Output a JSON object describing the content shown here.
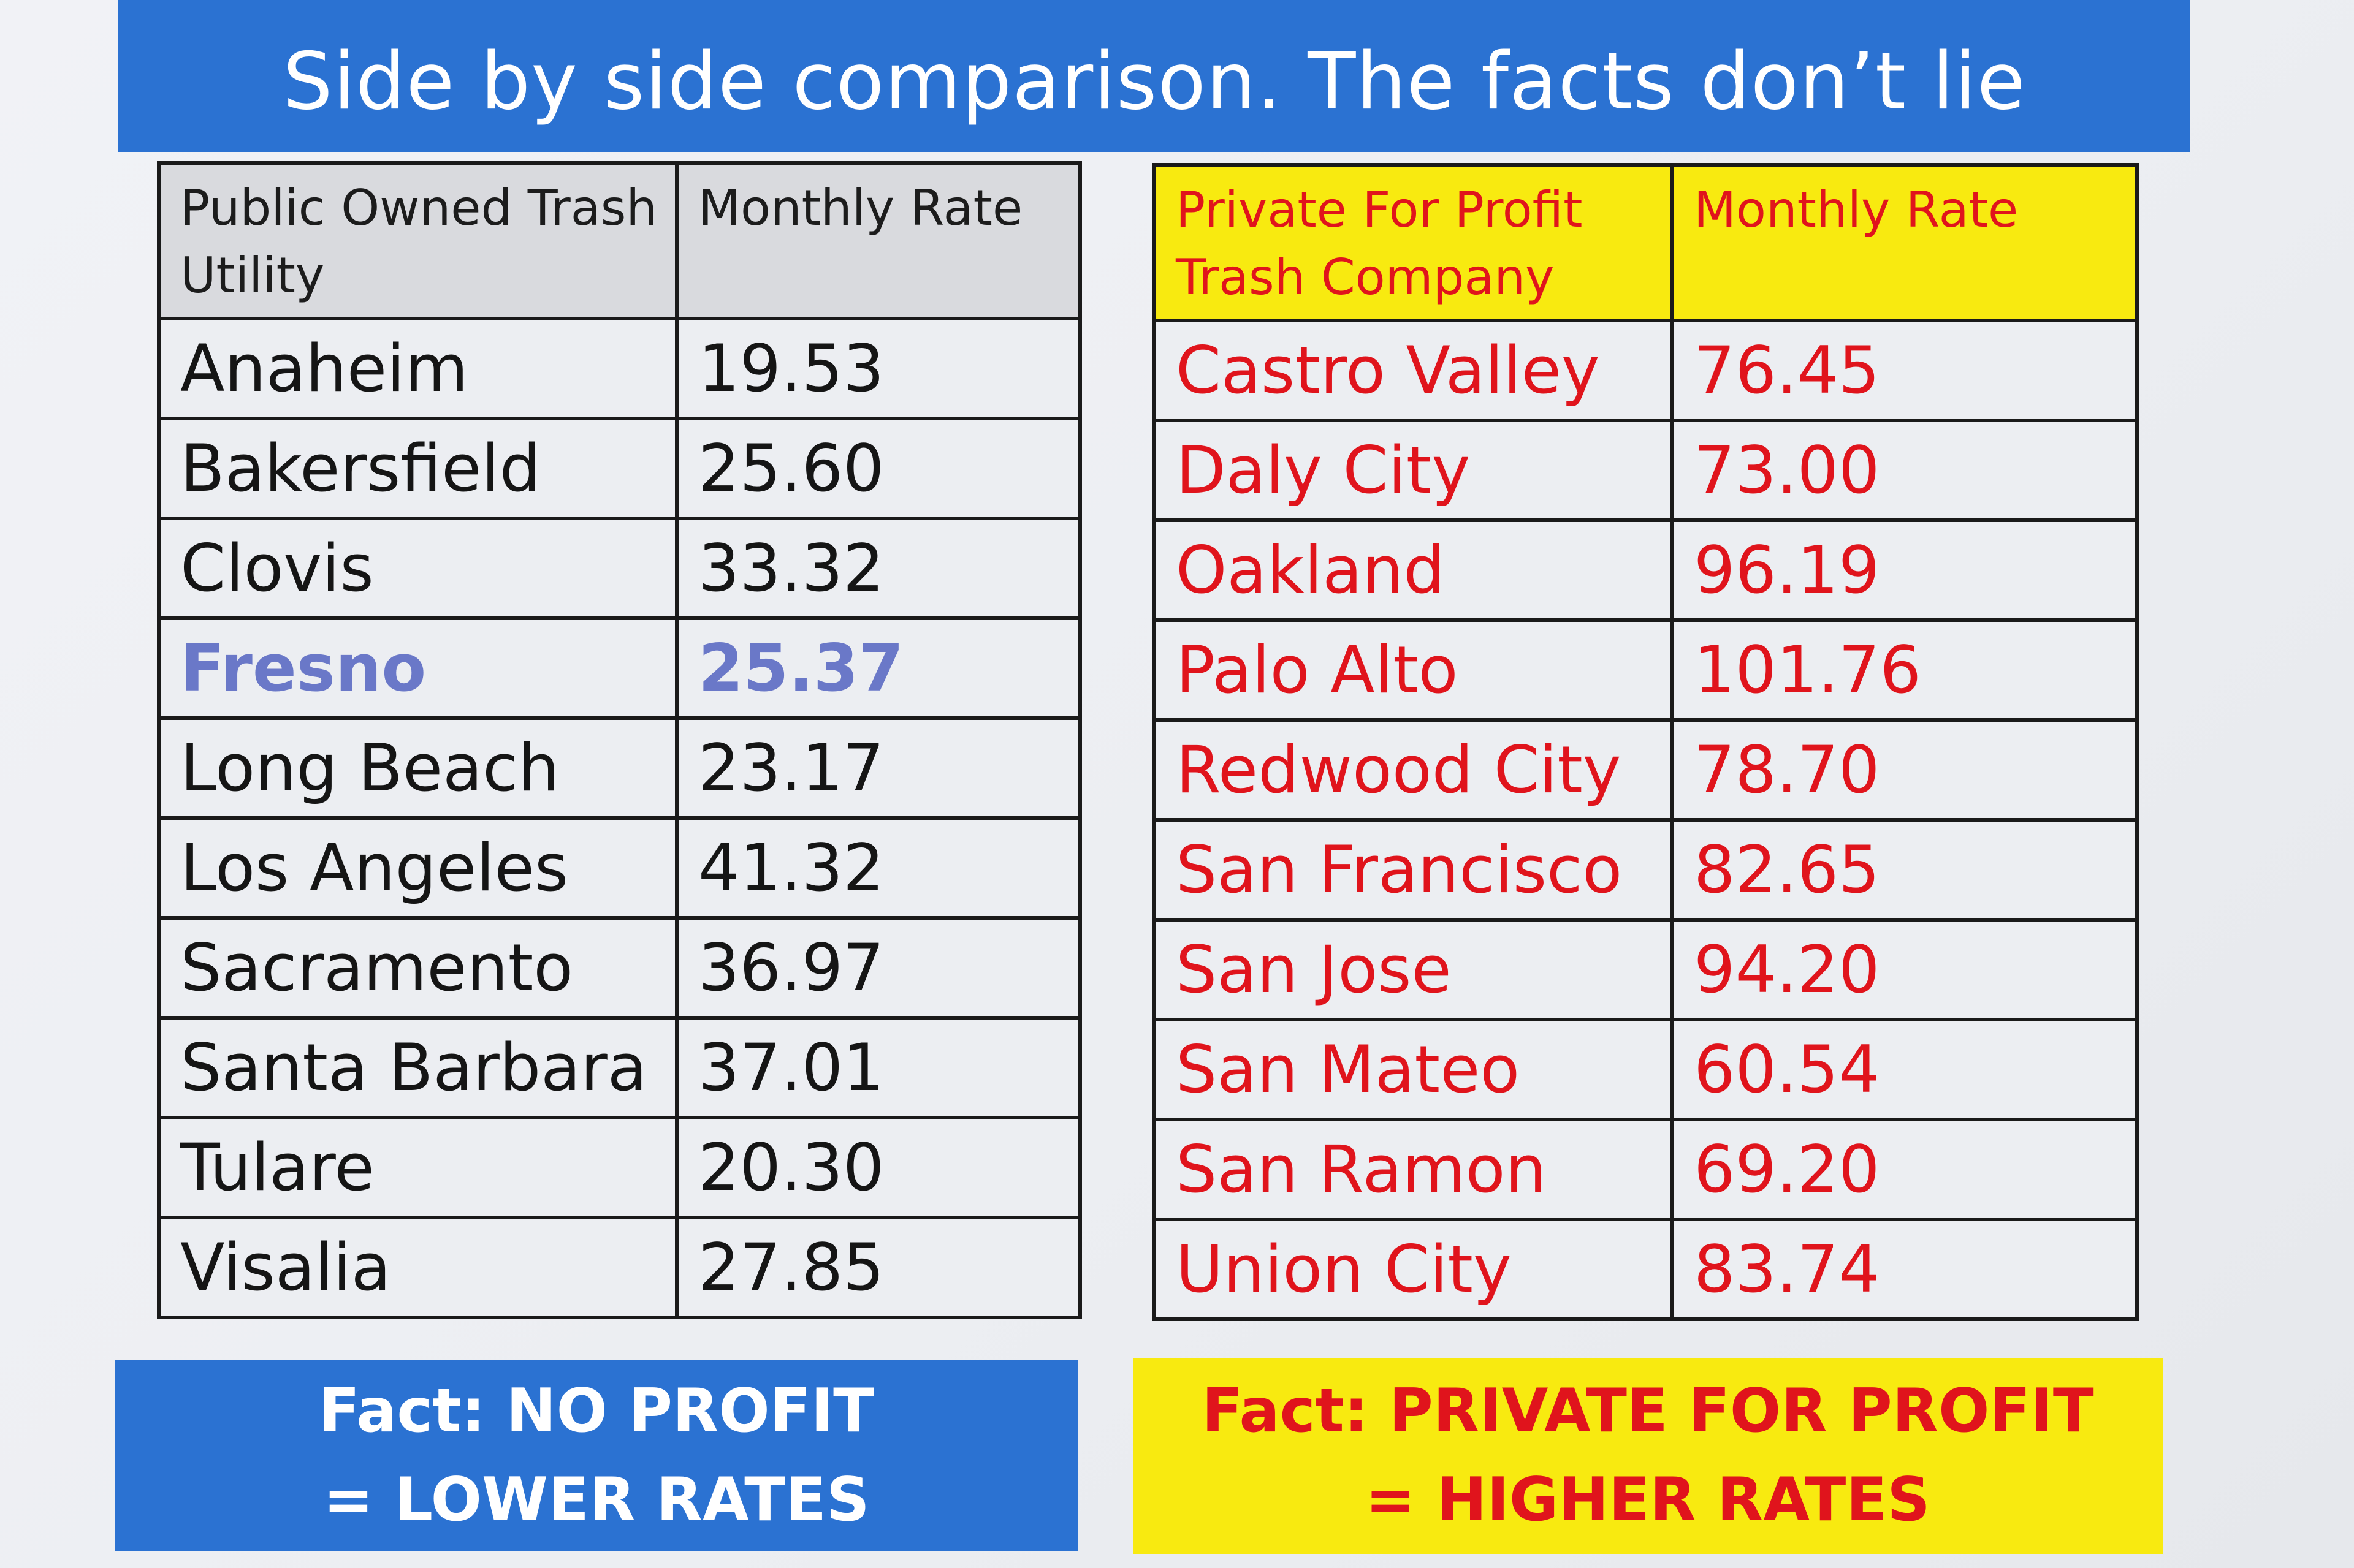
{
  "title": "Side by side comparison.  The facts don’t lie",
  "public": {
    "header_name": "Public Owned Trash Utility",
    "header_rate": "Monthly Rate",
    "rows": [
      {
        "city": "Anaheim",
        "rate": "19.53"
      },
      {
        "city": "Bakersfield",
        "rate": "25.60"
      },
      {
        "city": "Clovis",
        "rate": "33.32"
      },
      {
        "city": "Fresno",
        "rate": "25.37"
      },
      {
        "city": "Long Beach",
        "rate": "23.17"
      },
      {
        "city": "Los Angeles",
        "rate": "41.32"
      },
      {
        "city": "Sacramento",
        "rate": "36.97"
      },
      {
        "city": "Santa Barbara",
        "rate": "37.01"
      },
      {
        "city": "Tulare",
        "rate": "20.30"
      },
      {
        "city": "Visalia",
        "rate": "27.85"
      }
    ],
    "highlight_color": "#6a78c8",
    "fact_line1": "Fact: NO PROFIT",
    "fact_line2": "= LOWER RATES",
    "accent": "#2b72d2"
  },
  "private": {
    "header_name": "Private For Profit Trash Company",
    "header_rate": "Monthly Rate",
    "rows": [
      {
        "city": "Castro Valley",
        "rate": "76.45"
      },
      {
        "city": "Daly City",
        "rate": "73.00"
      },
      {
        "city": "Oakland",
        "rate": "96.19"
      },
      {
        "city": "Palo Alto",
        "rate": "101.76"
      },
      {
        "city": "Redwood City",
        "rate": "78.70"
      },
      {
        "city": "San Francisco",
        "rate": "82.65"
      },
      {
        "city": "San Jose",
        "rate": "94.20"
      },
      {
        "city": "San Mateo",
        "rate": "60.54"
      },
      {
        "city": "San Ramon",
        "rate": "69.20"
      },
      {
        "city": "Union City",
        "rate": "83.74"
      }
    ],
    "fact_line1": "Fact: PRIVATE FOR PROFIT",
    "fact_line2": "= HIGHER RATES",
    "accent": "#f8ea10",
    "text_color": "#e0141c"
  }
}
